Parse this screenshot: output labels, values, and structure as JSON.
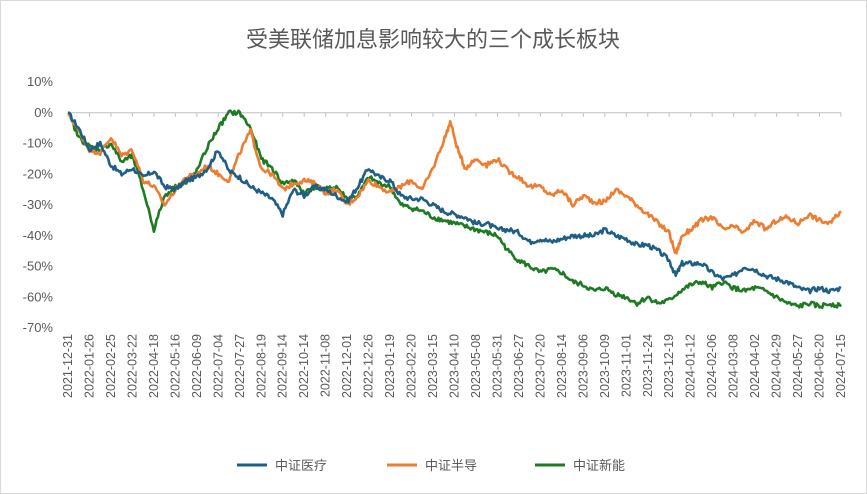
{
  "chart_data": {
    "type": "line",
    "title": "受美联储加息影响较大的三个成长板块",
    "xlabel": "",
    "ylabel": "",
    "ylim": [
      -0.7,
      0.1
    ],
    "y_ticks": [
      0.1,
      0.0,
      -0.1,
      -0.2,
      -0.3,
      -0.4,
      -0.5,
      -0.6,
      -0.7
    ],
    "y_tick_labels": [
      "10%",
      "0%",
      "-10%",
      "-20%",
      "-30%",
      "-40%",
      "-50%",
      "-60%",
      "-70%"
    ],
    "x_tick_labels": [
      "2021-12-31",
      "2022-01-26",
      "2022-02-25",
      "2022-03-22",
      "2022-04-18",
      "2022-05-16",
      "2022-06-09",
      "2022-07-04",
      "2022-07-27",
      "2022-08-19",
      "2022-09-14",
      "2022-10-14",
      "2022-11-08",
      "2022-12-01",
      "2022-12-26",
      "2023-01-19",
      "2023-02-20",
      "2023-03-15",
      "2023-04-10",
      "2023-05-08",
      "2023-05-31",
      "2023-06-27",
      "2023-07-20",
      "2023-08-14",
      "2023-09-06",
      "2023-10-09",
      "2023-11-01",
      "2023-11-24",
      "2023-12-19",
      "2024-01-12",
      "2024-02-06",
      "2024-03-08",
      "2024-04-02",
      "2024-04-29",
      "2024-05-27",
      "2024-06-20",
      "2024-07-15"
    ],
    "grid": "off",
    "legend": "bottom",
    "series": [
      {
        "name": "中证医疗",
        "color": "#1f5f86",
        "keypoints": [
          [
            0,
            0.0
          ],
          [
            0.5,
            -0.05
          ],
          [
            1.0,
            -0.12
          ],
          [
            1.5,
            -0.1
          ],
          [
            2.0,
            -0.17
          ],
          [
            2.5,
            -0.2
          ],
          [
            3.0,
            -0.18
          ],
          [
            3.5,
            -0.21
          ],
          [
            4.0,
            -0.19
          ],
          [
            4.5,
            -0.24
          ],
          [
            5.0,
            -0.25
          ],
          [
            5.5,
            -0.22
          ],
          [
            6.0,
            -0.21
          ],
          [
            6.5,
            -0.18
          ],
          [
            7.0,
            -0.12
          ],
          [
            7.5,
            -0.19
          ],
          [
            8.0,
            -0.21
          ],
          [
            8.5,
            -0.24
          ],
          [
            9.0,
            -0.26
          ],
          [
            9.5,
            -0.28
          ],
          [
            10.0,
            -0.33
          ],
          [
            10.5,
            -0.25
          ],
          [
            11.0,
            -0.27
          ],
          [
            11.5,
            -0.24
          ],
          [
            12.0,
            -0.25
          ],
          [
            12.5,
            -0.27
          ],
          [
            13.0,
            -0.29
          ],
          [
            13.5,
            -0.24
          ],
          [
            14.0,
            -0.18
          ],
          [
            14.5,
            -0.21
          ],
          [
            15.0,
            -0.22
          ],
          [
            15.5,
            -0.27
          ],
          [
            16.0,
            -0.28
          ],
          [
            16.5,
            -0.28
          ],
          [
            17.0,
            -0.3
          ],
          [
            17.5,
            -0.32
          ],
          [
            18.0,
            -0.33
          ],
          [
            18.5,
            -0.34
          ],
          [
            19.0,
            -0.36
          ],
          [
            19.5,
            -0.36
          ],
          [
            20.0,
            -0.38
          ],
          [
            20.5,
            -0.38
          ],
          [
            21.0,
            -0.39
          ],
          [
            21.5,
            -0.42
          ],
          [
            22.0,
            -0.41
          ],
          [
            22.5,
            -0.42
          ],
          [
            23.0,
            -0.41
          ],
          [
            23.5,
            -0.4
          ],
          [
            24.0,
            -0.4
          ],
          [
            24.5,
            -0.4
          ],
          [
            25.0,
            -0.38
          ],
          [
            25.5,
            -0.4
          ],
          [
            26.0,
            -0.41
          ],
          [
            26.5,
            -0.43
          ],
          [
            27.0,
            -0.43
          ],
          [
            27.5,
            -0.45
          ],
          [
            28.0,
            -0.48
          ],
          [
            28.3,
            -0.53
          ],
          [
            28.6,
            -0.49
          ],
          [
            29.0,
            -0.49
          ],
          [
            29.5,
            -0.49
          ],
          [
            30.0,
            -0.52
          ],
          [
            30.5,
            -0.54
          ],
          [
            31.0,
            -0.53
          ],
          [
            31.5,
            -0.5
          ],
          [
            32.0,
            -0.51
          ],
          [
            32.5,
            -0.53
          ],
          [
            33.0,
            -0.54
          ],
          [
            33.5,
            -0.55
          ],
          [
            34.0,
            -0.57
          ],
          [
            34.5,
            -0.58
          ],
          [
            35.0,
            -0.57
          ],
          [
            35.5,
            -0.58
          ],
          [
            36.0,
            -0.57
          ]
        ]
      },
      {
        "name": "中证半导",
        "color": "#ed7d31",
        "keypoints": [
          [
            0,
            0.0
          ],
          [
            0.5,
            -0.06
          ],
          [
            1.0,
            -0.12
          ],
          [
            1.5,
            -0.13
          ],
          [
            2.0,
            -0.08
          ],
          [
            2.5,
            -0.14
          ],
          [
            3.0,
            -0.12
          ],
          [
            3.5,
            -0.22
          ],
          [
            4.0,
            -0.24
          ],
          [
            4.5,
            -0.3
          ],
          [
            5.0,
            -0.25
          ],
          [
            5.5,
            -0.21
          ],
          [
            6.0,
            -0.2
          ],
          [
            6.5,
            -0.17
          ],
          [
            7.0,
            -0.2
          ],
          [
            7.5,
            -0.22
          ],
          [
            8.0,
            -0.13
          ],
          [
            8.5,
            -0.06
          ],
          [
            9.0,
            -0.18
          ],
          [
            9.5,
            -0.2
          ],
          [
            10.0,
            -0.25
          ],
          [
            10.5,
            -0.23
          ],
          [
            11.0,
            -0.22
          ],
          [
            11.5,
            -0.23
          ],
          [
            12.0,
            -0.26
          ],
          [
            12.5,
            -0.25
          ],
          [
            13.0,
            -0.3
          ],
          [
            13.5,
            -0.27
          ],
          [
            14.0,
            -0.22
          ],
          [
            14.5,
            -0.24
          ],
          [
            15.0,
            -0.26
          ],
          [
            15.5,
            -0.24
          ],
          [
            16.0,
            -0.22
          ],
          [
            16.5,
            -0.25
          ],
          [
            17.0,
            -0.18
          ],
          [
            17.5,
            -0.09
          ],
          [
            17.8,
            -0.03
          ],
          [
            18.2,
            -0.13
          ],
          [
            18.5,
            -0.18
          ],
          [
            19.0,
            -0.15
          ],
          [
            19.5,
            -0.17
          ],
          [
            20.0,
            -0.15
          ],
          [
            20.5,
            -0.19
          ],
          [
            21.0,
            -0.21
          ],
          [
            21.5,
            -0.24
          ],
          [
            22.0,
            -0.24
          ],
          [
            22.5,
            -0.27
          ],
          [
            23.0,
            -0.25
          ],
          [
            23.5,
            -0.3
          ],
          [
            24.0,
            -0.27
          ],
          [
            24.5,
            -0.29
          ],
          [
            25.0,
            -0.29
          ],
          [
            25.5,
            -0.25
          ],
          [
            26.0,
            -0.27
          ],
          [
            26.5,
            -0.3
          ],
          [
            27.0,
            -0.33
          ],
          [
            27.5,
            -0.36
          ],
          [
            28.0,
            -0.39
          ],
          [
            28.3,
            -0.46
          ],
          [
            28.6,
            -0.4
          ],
          [
            29.0,
            -0.38
          ],
          [
            29.5,
            -0.35
          ],
          [
            30.0,
            -0.34
          ],
          [
            30.5,
            -0.38
          ],
          [
            31.0,
            -0.37
          ],
          [
            31.5,
            -0.39
          ],
          [
            32.0,
            -0.35
          ],
          [
            32.5,
            -0.38
          ],
          [
            33.0,
            -0.35
          ],
          [
            33.5,
            -0.34
          ],
          [
            34.0,
            -0.36
          ],
          [
            34.5,
            -0.33
          ],
          [
            35.0,
            -0.35
          ],
          [
            35.5,
            -0.36
          ],
          [
            36.0,
            -0.32
          ]
        ]
      },
      {
        "name": "中证新能",
        "color": "#1f7a24",
        "keypoints": [
          [
            0,
            0.0
          ],
          [
            0.5,
            -0.08
          ],
          [
            1.0,
            -0.11
          ],
          [
            1.5,
            -0.12
          ],
          [
            2.0,
            -0.1
          ],
          [
            2.5,
            -0.16
          ],
          [
            3.0,
            -0.14
          ],
          [
            3.5,
            -0.25
          ],
          [
            4.0,
            -0.38
          ],
          [
            4.5,
            -0.27
          ],
          [
            5.0,
            -0.24
          ],
          [
            5.5,
            -0.23
          ],
          [
            6.0,
            -0.19
          ],
          [
            6.5,
            -0.11
          ],
          [
            7.0,
            -0.05
          ],
          [
            7.5,
            0.0
          ],
          [
            8.0,
            0.0
          ],
          [
            8.5,
            -0.05
          ],
          [
            9.0,
            -0.15
          ],
          [
            9.5,
            -0.18
          ],
          [
            10.0,
            -0.23
          ],
          [
            10.5,
            -0.22
          ],
          [
            11.0,
            -0.26
          ],
          [
            11.5,
            -0.24
          ],
          [
            12.0,
            -0.25
          ],
          [
            12.5,
            -0.24
          ],
          [
            13.0,
            -0.28
          ],
          [
            13.5,
            -0.27
          ],
          [
            14.0,
            -0.21
          ],
          [
            14.5,
            -0.23
          ],
          [
            15.0,
            -0.24
          ],
          [
            15.5,
            -0.3
          ],
          [
            16.0,
            -0.31
          ],
          [
            16.5,
            -0.32
          ],
          [
            17.0,
            -0.34
          ],
          [
            17.5,
            -0.35
          ],
          [
            18.0,
            -0.36
          ],
          [
            18.5,
            -0.37
          ],
          [
            19.0,
            -0.38
          ],
          [
            19.5,
            -0.39
          ],
          [
            20.0,
            -0.4
          ],
          [
            20.5,
            -0.45
          ],
          [
            21.0,
            -0.48
          ],
          [
            21.5,
            -0.5
          ],
          [
            22.0,
            -0.52
          ],
          [
            22.5,
            -0.51
          ],
          [
            23.0,
            -0.52
          ],
          [
            23.5,
            -0.55
          ],
          [
            24.0,
            -0.56
          ],
          [
            24.5,
            -0.58
          ],
          [
            25.0,
            -0.57
          ],
          [
            25.5,
            -0.59
          ],
          [
            26.0,
            -0.6
          ],
          [
            26.5,
            -0.62
          ],
          [
            27.0,
            -0.6
          ],
          [
            27.5,
            -0.62
          ],
          [
            28.0,
            -0.61
          ],
          [
            28.5,
            -0.58
          ],
          [
            29.0,
            -0.56
          ],
          [
            29.5,
            -0.55
          ],
          [
            30.0,
            -0.57
          ],
          [
            30.5,
            -0.55
          ],
          [
            31.0,
            -0.57
          ],
          [
            31.5,
            -0.58
          ],
          [
            32.0,
            -0.57
          ],
          [
            32.5,
            -0.58
          ],
          [
            33.0,
            -0.6
          ],
          [
            33.5,
            -0.62
          ],
          [
            34.0,
            -0.63
          ],
          [
            34.5,
            -0.62
          ],
          [
            35.0,
            -0.63
          ],
          [
            35.5,
            -0.62
          ],
          [
            36.0,
            -0.63
          ]
        ]
      }
    ]
  }
}
